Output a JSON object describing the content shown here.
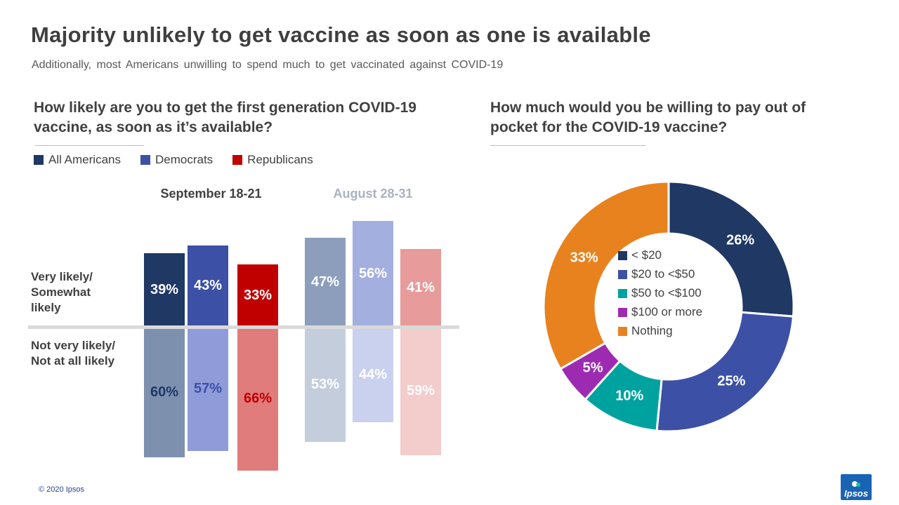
{
  "slide": {
    "title": "Majority unlikely to get vaccine as soon as one is available",
    "subtitle": "Additionally, most Americans unwilling to spend much to get vaccinated against COVID-19",
    "copyright": "© 2020 Ipsos",
    "logo_text": "Ipsos"
  },
  "likelihood_chart": {
    "question": "How likely are you to get the first generation COVID-19 vaccine, as soon as it’s available?",
    "legend": [
      {
        "label": "All Americans",
        "color": "#1F3864"
      },
      {
        "label": "Democrats",
        "color": "#3C50A5"
      },
      {
        "label": "Republicans",
        "color": "#C00000"
      }
    ],
    "row_labels": {
      "top": "Very likely/\nSomewhat\nlikely",
      "bottom": "Not very likely/\nNot at all likely"
    }
  },
  "pay_chart": {
    "question": "How much would you be willing to pay out of pocket for the COVID-19 vaccine?"
  },
  "chart_data": [
    {
      "type": "bar",
      "subtype": "diverging",
      "title": "How likely are you to get the first generation COVID-19 vaccine, as soon as it’s available?",
      "row_top": "Very likely/Somewhat likely",
      "row_bottom": "Not very likely/Not at all likely",
      "ylim": [
        0,
        100
      ],
      "grid": false,
      "groups": [
        {
          "label": "September 18-21",
          "label_color": "#404040",
          "bars": [
            {
              "series": "All Americans",
              "top": {
                "value": 39,
                "label": "39%",
                "color": "#1F3864",
                "label_color": "#FFFFFF"
              },
              "bottom": {
                "value": 60,
                "label": "60%",
                "color": "#7D90AE",
                "label_color": "#1F3864"
              }
            },
            {
              "series": "Democrats",
              "top": {
                "value": 43,
                "label": "43%",
                "color": "#3C50A5",
                "label_color": "#FFFFFF"
              },
              "bottom": {
                "value": 57,
                "label": "57%",
                "color": "#8F9CD9",
                "label_color": "#3C50A5"
              }
            },
            {
              "series": "Republicans",
              "top": {
                "value": 33,
                "label": "33%",
                "color": "#C00000",
                "label_color": "#FFFFFF"
              },
              "bottom": {
                "value": 66,
                "label": "66%",
                "color": "#E07C7C",
                "label_color": "#C00000"
              }
            }
          ]
        },
        {
          "label": "August 28-31",
          "label_color": "#A8B2C2",
          "bars": [
            {
              "series": "All Americans",
              "top": {
                "value": 47,
                "label": "47%",
                "color": "#8C9EBC",
                "label_color": "#FFFFFF"
              },
              "bottom": {
                "value": 53,
                "label": "53%",
                "color": "#C4CDDC",
                "label_color": "#FFFFFF"
              }
            },
            {
              "series": "Democrats",
              "top": {
                "value": 56,
                "label": "56%",
                "color": "#A3AFDF",
                "label_color": "#FFFFFF"
              },
              "bottom": {
                "value": 44,
                "label": "44%",
                "color": "#CAD1EE",
                "label_color": "#FFFFFF"
              }
            },
            {
              "series": "Republicans",
              "top": {
                "value": 41,
                "label": "41%",
                "color": "#E89B9B",
                "label_color": "#FFFFFF"
              },
              "bottom": {
                "value": 59,
                "label": "59%",
                "color": "#F3CCCC",
                "label_color": "#FFFFFF"
              }
            }
          ]
        }
      ]
    },
    {
      "type": "pie",
      "subtype": "donut",
      "title": "How much would you be willing to pay out of pocket for the COVID-19 vaccine?",
      "start_angle_deg": 0,
      "direction": "clockwise",
      "legend_position": "center",
      "slices": [
        {
          "label": "< $20",
          "value": 26,
          "display": "26%",
          "color": "#1F3864"
        },
        {
          "label": "$20 to <$50",
          "value": 25,
          "display": "25%",
          "color": "#3C50A5"
        },
        {
          "label": "$50 to <$100",
          "value": 10,
          "display": "10%",
          "color": "#00A2A0"
        },
        {
          "label": "$100 or more",
          "value": 5,
          "display": "5%",
          "color": "#9C2BB2"
        },
        {
          "label": "Nothing",
          "value": 33,
          "display": "33%",
          "color": "#E8821E"
        }
      ]
    }
  ]
}
